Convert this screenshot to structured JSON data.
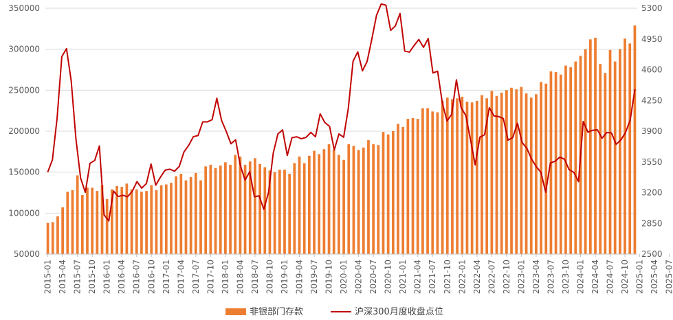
{
  "chart_data": {
    "type": "bar+line",
    "title": "",
    "xlabel": "",
    "ylabel": "",
    "ylim": [
      50000,
      350000
    ],
    "y2lim": [
      2500,
      5300
    ],
    "yticks": [
      "350000",
      "300000",
      "250000",
      "200000",
      "150000",
      "100000",
      "50000"
    ],
    "y2ticks": [
      "5300",
      "4950",
      "4600",
      "4250",
      "3900",
      "3550",
      "3200",
      "2850",
      "2500"
    ],
    "xticks": [
      "2015-01",
      "2015-04",
      "2015-07",
      "2015-10",
      "2016-01",
      "2016-04",
      "2016-07",
      "2016-10",
      "2017-01",
      "2017-04",
      "2017-07",
      "2017-10",
      "2018-01",
      "2018-04",
      "2018-07",
      "2018-10",
      "2019-01",
      "2019-04",
      "2019-07",
      "2019-10",
      "2020-01",
      "2020-04",
      "2020-07",
      "2020-10",
      "2021-01",
      "2021-04",
      "2021-07",
      "2021-10",
      "2022-01",
      "2022-04",
      "2022-07",
      "2022-10",
      "2023-01",
      "2023-04",
      "2023-07",
      "2023-10",
      "2024-01",
      "2024-04",
      "2024-07",
      "2024-10",
      "2025-01",
      "2025-04",
      "2025-07"
    ],
    "legend_position": "bottom",
    "colors": {
      "bars": "#ED7D31",
      "line": "#C00000"
    },
    "series": [
      {
        "name": "非银部门存款",
        "kind": "bar",
        "axis": "left",
        "values": [
          88000,
          89000,
          96000,
          107000,
          126000,
          128000,
          146000,
          122000,
          131000,
          131000,
          127000,
          134000,
          117000,
          129000,
          133000,
          132000,
          136000,
          129000,
          129000,
          126000,
          127000,
          134000,
          128000,
          134000,
          135000,
          137000,
          145000,
          148000,
          140000,
          144000,
          149000,
          140000,
          157000,
          159000,
          155000,
          158000,
          162000,
          159000,
          171000,
          169000,
          159000,
          163000,
          167000,
          160000,
          156000,
          152000,
          150000,
          153000,
          153000,
          148000,
          161000,
          169000,
          161000,
          170000,
          176000,
          172000,
          178000,
          184000,
          177000,
          171000,
          165000,
          184000,
          182000,
          177000,
          180000,
          189000,
          184000,
          183000,
          199000,
          196000,
          200000,
          209000,
          205000,
          215000,
          216000,
          215000,
          228000,
          228000,
          224000,
          223000,
          237000,
          241000,
          239000,
          240000,
          242000,
          236000,
          235000,
          237000,
          244000,
          240000,
          249000,
          243000,
          247000,
          250000,
          253000,
          251000,
          254000,
          246000,
          241000,
          245000,
          260000,
          258000,
          273000,
          272000,
          269000,
          280000,
          278000,
          285000,
          292000,
          300000,
          312000,
          314000,
          282000,
          271000,
          299000,
          285000,
          300000,
          313000,
          307000,
          329000
        ]
      },
      {
        "name": "沪深300月度收盘点位",
        "kind": "line",
        "axis": "right",
        "values": [
          3434,
          3573,
          4051,
          4749,
          4840,
          4473,
          3816,
          3366,
          3203,
          3534,
          3566,
          3731,
          2946,
          2878,
          3218,
          3156,
          3169,
          3153,
          3215,
          3326,
          3251,
          3302,
          3526,
          3285,
          3377,
          3456,
          3467,
          3444,
          3498,
          3663,
          3737,
          3837,
          3850,
          4006,
          4006,
          4031,
          4275,
          4023,
          3898,
          3756,
          3802,
          3510,
          3343,
          3438,
          3153,
          3163,
          3010,
          3201,
          3647,
          3869,
          3914,
          3623,
          3826,
          3836,
          3814,
          3829,
          3886,
          3836,
          4097,
          3998,
          3955,
          3686,
          3868,
          3831,
          4164,
          4695,
          4803,
          4587,
          4695,
          4950,
          5221,
          5349,
          5335,
          5048,
          5098,
          5240,
          4812,
          4800,
          4876,
          4944,
          4855,
          4955,
          4563,
          4583,
          4222,
          4016,
          4092,
          4485,
          4170,
          4078,
          3804,
          3516,
          3832,
          3859,
          4167,
          4074,
          4066,
          4043,
          3797,
          3828,
          3990,
          3770,
          3705,
          3582,
          3496,
          3431,
          3205,
          3537,
          3557,
          3604,
          3581,
          3461,
          3431,
          3326,
          4010,
          3889,
          3910,
          3916,
          3820,
          3884,
          3880,
          3750,
          3799,
          3884,
          4028,
          4378
        ]
      }
    ]
  }
}
